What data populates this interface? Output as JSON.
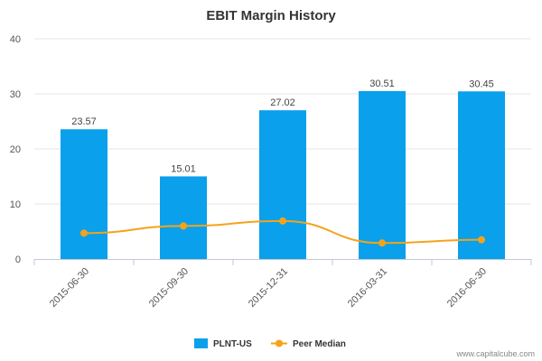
{
  "chart_data": {
    "type": "bar",
    "title": "EBIT Margin History",
    "xlabel": "",
    "ylabel": "",
    "categories": [
      "2015-06-30",
      "2015-09-30",
      "2015-12-31",
      "2016-03-31",
      "2016-06-30"
    ],
    "series": [
      {
        "name": "PLNT-US",
        "type": "bar",
        "color": "#0aa0eb",
        "values": [
          23.57,
          15.01,
          27.02,
          30.51,
          30.45
        ]
      },
      {
        "name": "Peer Median",
        "type": "line",
        "color": "#f5a31a",
        "values": [
          4.7,
          6.0,
          6.9,
          2.9,
          3.5
        ]
      }
    ],
    "data_labels": [
      "23.57",
      "15.01",
      "27.02",
      "30.51",
      "30.45"
    ],
    "yticks": [
      "0",
      "10",
      "20",
      "30",
      "40"
    ],
    "ylim": [
      0,
      40
    ],
    "grid": true,
    "legend_position": "bottom-center"
  },
  "credit": "www.capitalcube.com"
}
